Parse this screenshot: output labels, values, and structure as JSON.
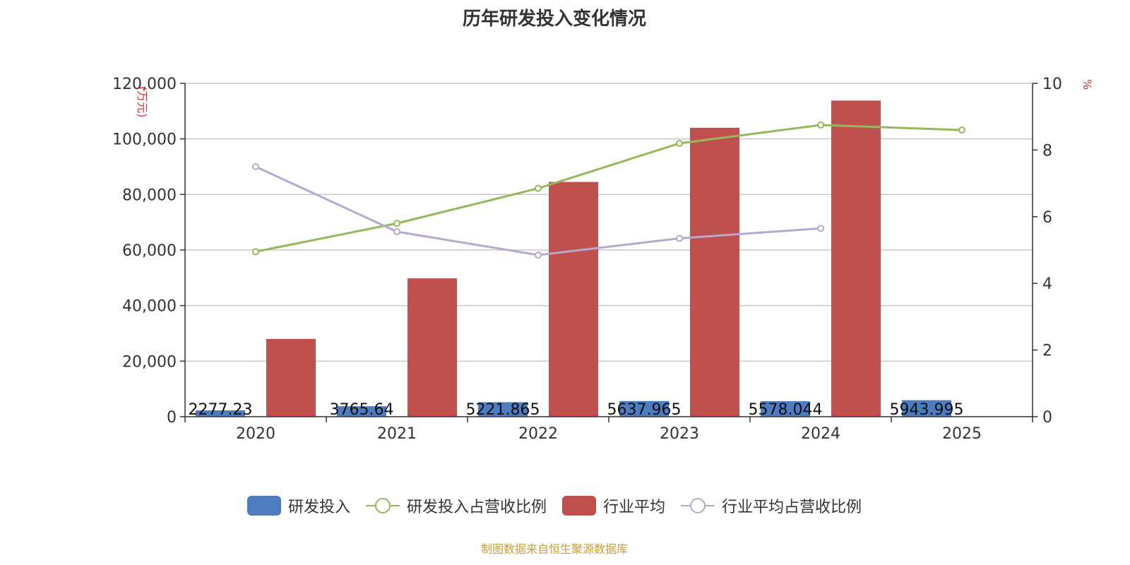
{
  "chart_data": {
    "type": "bar",
    "title": "历年研发投入变化情况",
    "categories": [
      "2020",
      "2021",
      "2022",
      "2023",
      "2024",
      "2025"
    ],
    "y_left": {
      "unit": "(万元)",
      "ticks": [
        "0",
        "20,000",
        "40,000",
        "60,000",
        "80,000",
        "100,000",
        "120,000"
      ],
      "ylim": [
        0,
        120000
      ]
    },
    "y_right": {
      "unit": "%",
      "ticks": [
        "0",
        "2",
        "4",
        "6",
        "8",
        "10"
      ],
      "ylim": [
        0,
        10
      ]
    },
    "series": [
      {
        "name": "研发投入",
        "type": "bar",
        "axis": "left",
        "color": "#4e7cc0",
        "values": [
          2277.23,
          3765.64,
          5221.865,
          5637.965,
          5578.044,
          5943.995
        ],
        "labels": [
          "2277.23",
          "3765.64",
          "5221.865",
          "5637.965",
          "5578.044",
          "5943.995"
        ]
      },
      {
        "name": "研发投入占营收比例",
        "type": "line",
        "axis": "right",
        "color": "#95b85a",
        "values": [
          4.95,
          5.8,
          6.85,
          8.2,
          8.75,
          8.6
        ]
      },
      {
        "name": "行业平均",
        "type": "bar",
        "axis": "left",
        "color": "#c0504d",
        "values": [
          28000,
          49800,
          84500,
          104000,
          113800,
          null
        ]
      },
      {
        "name": "行业平均占营收比例",
        "type": "line",
        "axis": "right",
        "color": "#b8a8d0",
        "values": [
          7.5,
          5.55,
          4.85,
          5.35,
          5.65,
          null
        ]
      }
    ],
    "grid": true,
    "legend_position": "bottom"
  },
  "source_text": "制图数据来自恒生聚源数据库"
}
